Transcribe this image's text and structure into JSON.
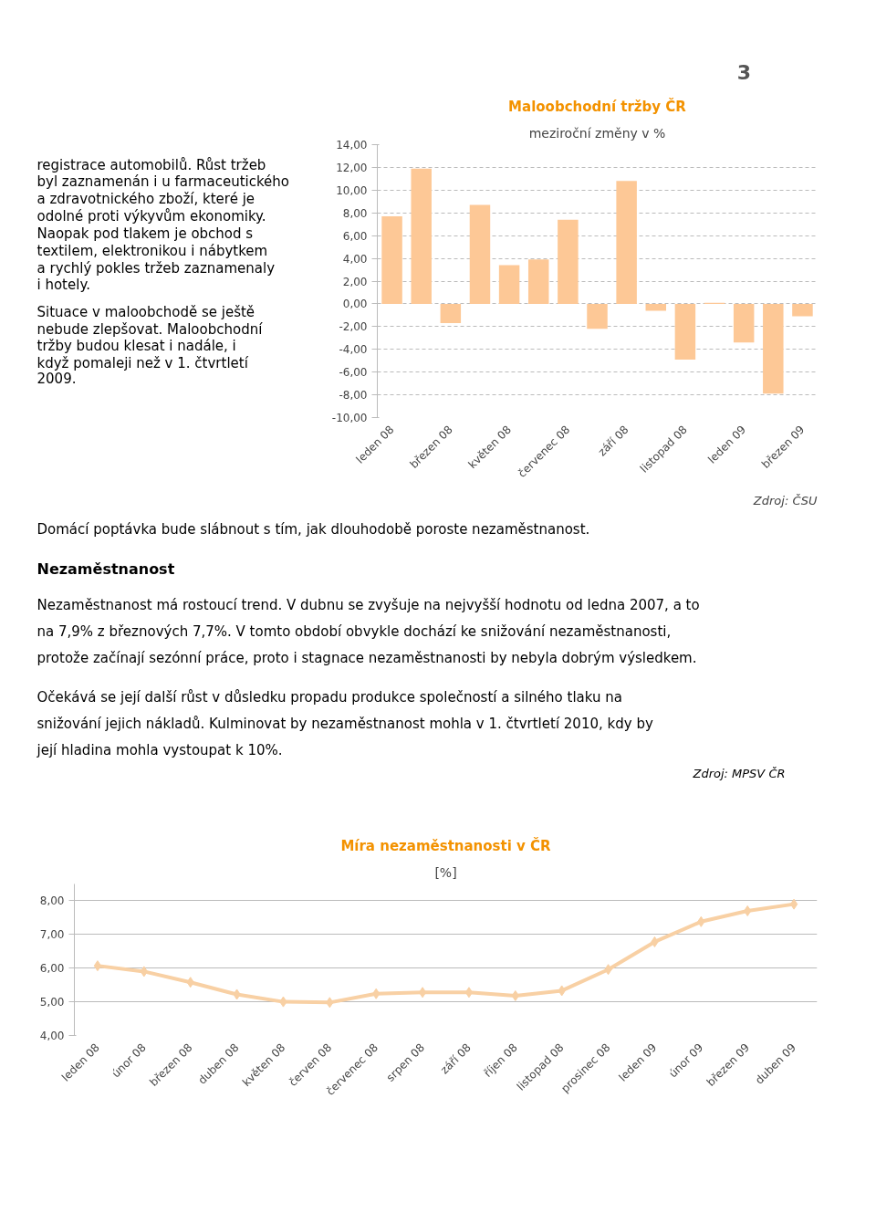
{
  "chart_data": [
    {
      "type": "other",
      "annotations": [
        "3"
      ]
    },
    {
      "type": "other",
      "annotations": [
        "registrace automobilů. Růst tržeb byl zaznamenán i u farmaceutického a zdravotnického zboží, které je odolné proti výkyvům ekonomiky. Naopak pod tlakem je obchod s textilem, elektronikou i nábytkem a rychlý pokles tržeb zaznamenaly i hotely.",
        "Situace v maloobchodě se ještě nebude zlepšovat. Maloobchodní tržby budou klesat i nadále, i když pomaleji než v 1. čtvrtletí 2009."
      ]
    },
    {
      "type": "bar",
      "title": "Maloobchodní tržby ČR",
      "subtitle": "meziroční změny v %",
      "categories": [
        "leden 08",
        null,
        "březen 08",
        null,
        "květen 08",
        null,
        "červenec 08",
        null,
        "září 08",
        null,
        "listopad 08",
        null,
        "leden 09",
        null,
        "březen 09"
      ],
      "values": [
        7.7,
        11.9,
        -1.7,
        8.7,
        3.4,
        3.9,
        7.4,
        -2.2,
        10.8,
        -0.6,
        -4.9,
        0.1,
        -3.4,
        -7.9,
        -1.1
      ],
      "color": "#fdc896",
      "ylim": [
        -10,
        14
      ],
      "yticks": [
        {
          "value": -10,
          "label": "-10,00"
        },
        {
          "value": -8,
          "label": "-8,00"
        },
        {
          "value": -6,
          "label": "-6,00"
        },
        {
          "value": -4,
          "label": "-4,00"
        },
        {
          "value": -2,
          "label": "-2,00"
        },
        {
          "value": 0,
          "label": "0,00"
        },
        {
          "value": 2,
          "label": "2,00"
        },
        {
          "value": 4,
          "label": "4,00"
        },
        {
          "value": 6,
          "label": "6,00"
        },
        {
          "value": 8,
          "label": "8,00"
        },
        {
          "value": 10,
          "label": "10,00"
        },
        {
          "value": 12,
          "label": "12,00"
        },
        {
          "value": 14,
          "label": "14,00"
        }
      ],
      "grid": "y",
      "line_style": "dashed",
      "annotations": [
        "Zdroj: ČSU"
      ]
    },
    {
      "type": "other",
      "title": "Nezaměstnanost",
      "annotations": [
        "Domácí poptávka bude slábnout s tím, jak dlouhodobě poroste nezaměstnanost.",
        "Nezaměstnanost má rostoucí trend. V dubnu se zvyšuje na nejvyšší hodnotu od ledna 2007, a to na 7,9% z březnových 7,7%. V tomto období obvykle dochází ke snižování nezaměstnanosti, protože začínají sezónní práce, proto i stagnace nezaměstnanosti by nebyla dobrým výsledkem.",
        "Očekává se její další růst v důsledku propadu produkce společností a silného tlaku na snižování jejich nákladů. Kulminovat by nezaměstnanost mohla v 1. čtvrtletí 2010, kdy by její hladina mohla vystoupat k 10%.",
        "Zdroj: MPSV ČR"
      ]
    },
    {
      "type": "line",
      "title": "Míra nezaměstnanosti v ČR",
      "subtitle": "[%]",
      "categories": [
        "leden 08",
        "únor 08",
        "březen 08",
        "duben 08",
        "květen 08",
        "červen 08",
        "červenec 08",
        "srpen 08",
        "září 08",
        "říjen 08",
        "listopad 08",
        "prosinec 08",
        "leden 09",
        "únor 09",
        "březen 09",
        "duben 09"
      ],
      "values": [
        6.07,
        5.9,
        5.58,
        5.22,
        5.0,
        4.98,
        5.24,
        5.28,
        5.28,
        5.18,
        5.33,
        5.96,
        6.78,
        7.38,
        7.7,
        7.9
      ],
      "color": "#f8d0a4",
      "marker": "diamond",
      "ylim": [
        4,
        8.5
      ],
      "yticks": [
        {
          "value": 4,
          "label": "4,00"
        },
        {
          "value": 5,
          "label": "5,00"
        },
        {
          "value": 6,
          "label": "6,00"
        },
        {
          "value": 7,
          "label": "7,00"
        },
        {
          "value": 8,
          "label": "8,00"
        }
      ],
      "grid": "y"
    }
  ]
}
